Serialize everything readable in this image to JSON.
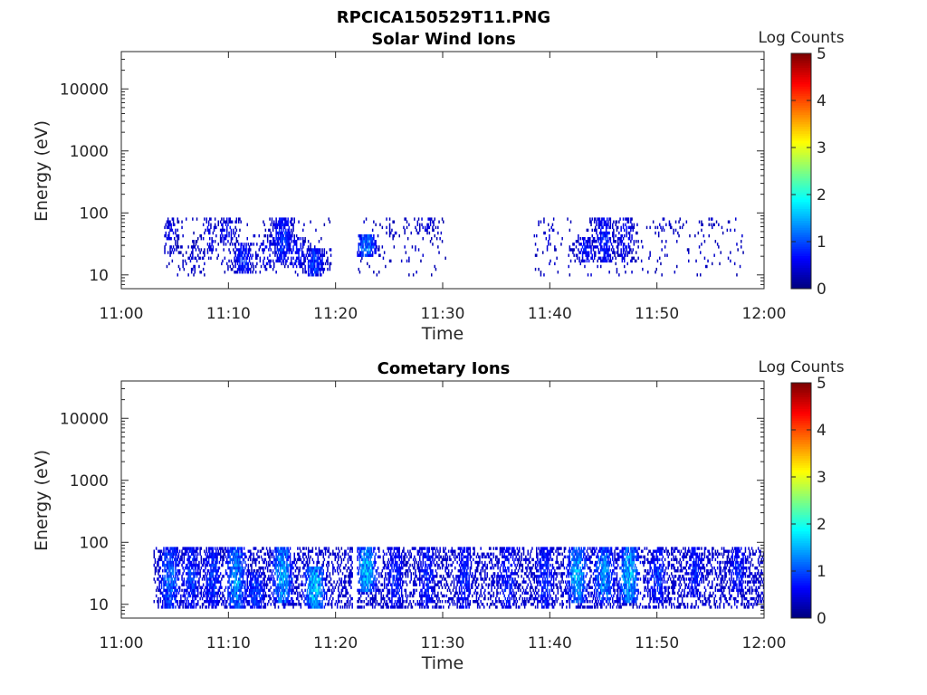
{
  "figure_title": "RPCICA150529T11.PNG",
  "chart_data": [
    {
      "type": "heatmap",
      "title": "Solar Wind Ions",
      "xlabel": "Time",
      "ylabel": "Energy (eV)",
      "x_range": [
        "11:00",
        "12:00"
      ],
      "x_ticks": [
        "11:00",
        "11:10",
        "11:20",
        "11:30",
        "11:40",
        "11:50",
        "12:00"
      ],
      "y_scale": "log",
      "y_range": [
        6,
        40000
      ],
      "y_ticks": [
        "10",
        "100",
        "1000",
        "10000"
      ],
      "colorbar": {
        "label": "Log Counts",
        "range": [
          0,
          5
        ],
        "ticks": [
          "0",
          "1",
          "2",
          "3",
          "4",
          "5"
        ],
        "colormap": "jet"
      },
      "blobs": [
        {
          "t": "11:04:30",
          "e_lo": 20,
          "e_hi": 80,
          "level": 0.6,
          "density": 0.45
        },
        {
          "t": "11:06:40",
          "e_lo": 9,
          "e_hi": 35,
          "level": 0.5,
          "density": 0.25
        },
        {
          "t": "11:08:10",
          "e_lo": 20,
          "e_hi": 80,
          "level": 0.6,
          "density": 0.3
        },
        {
          "t": "11:09:50",
          "e_lo": 30,
          "e_hi": 80,
          "level": 0.7,
          "density": 0.45
        },
        {
          "t": "11:11:20",
          "e_lo": 10,
          "e_hi": 30,
          "level": 0.9,
          "density": 0.8
        },
        {
          "t": "11:13:30",
          "e_lo": 11,
          "e_hi": 35,
          "level": 0.7,
          "density": 0.4
        },
        {
          "t": "11:15:00",
          "e_lo": 15,
          "e_hi": 80,
          "level": 1.0,
          "density": 0.85
        },
        {
          "t": "11:16:20",
          "e_lo": 12,
          "e_hi": 40,
          "level": 0.8,
          "density": 0.55
        },
        {
          "t": "11:18:00",
          "e_lo": 9,
          "e_hi": 25,
          "level": 1.1,
          "density": 0.9
        },
        {
          "t": "11:22:50",
          "e_lo": 18,
          "e_hi": 45,
          "level": 1.4,
          "density": 0.9
        },
        {
          "t": "11:25:30",
          "e_lo": 40,
          "e_hi": 80,
          "level": 0.5,
          "density": 0.25
        },
        {
          "t": "11:28:30",
          "e_lo": 45,
          "e_hi": 80,
          "level": 0.6,
          "density": 0.35
        },
        {
          "t": "11:39:50",
          "e_lo": 20,
          "e_hi": 80,
          "level": 0.5,
          "density": 0.2
        },
        {
          "t": "11:43:20",
          "e_lo": 15,
          "e_hi": 40,
          "level": 0.8,
          "density": 0.6
        },
        {
          "t": "11:45:00",
          "e_lo": 15,
          "e_hi": 80,
          "level": 0.9,
          "density": 0.7
        },
        {
          "t": "11:47:00",
          "e_lo": 15,
          "e_hi": 80,
          "level": 0.7,
          "density": 0.45
        },
        {
          "t": "11:50:30",
          "e_lo": 50,
          "e_hi": 80,
          "level": 0.5,
          "density": 0.25
        },
        {
          "t": "11:56:00",
          "e_lo": 55,
          "e_hi": 80,
          "level": 0.4,
          "density": 0.15
        }
      ],
      "active_windows": [
        [
          "11:04:00",
          "11:19:30"
        ],
        [
          "11:22:00",
          "11:30:30"
        ],
        [
          "11:38:30",
          "11:58:00"
        ]
      ],
      "background": {
        "e_lo": 9,
        "e_hi": 80,
        "level": 0.4,
        "density": 0.04
      }
    },
    {
      "type": "heatmap",
      "title": "Cometary Ions",
      "xlabel": "Time",
      "ylabel": "Energy (eV)",
      "x_range": [
        "11:00",
        "12:00"
      ],
      "x_ticks": [
        "11:00",
        "11:10",
        "11:20",
        "11:30",
        "11:40",
        "11:50",
        "12:00"
      ],
      "y_scale": "log",
      "y_range": [
        6,
        40000
      ],
      "y_ticks": [
        "10",
        "100",
        "1000",
        "10000"
      ],
      "colorbar": {
        "label": "Log Counts",
        "range": [
          0,
          5
        ],
        "ticks": [
          "0",
          "1",
          "2",
          "3",
          "4",
          "5"
        ],
        "colormap": "jet"
      },
      "blobs": [
        {
          "t": "11:04:30",
          "e_lo": 8,
          "e_hi": 80,
          "level": 1.3,
          "density": 0.85
        },
        {
          "t": "11:06:30",
          "e_lo": 8,
          "e_hi": 80,
          "level": 1.0,
          "density": 0.75
        },
        {
          "t": "11:08:30",
          "e_lo": 8,
          "e_hi": 80,
          "level": 1.0,
          "density": 0.75
        },
        {
          "t": "11:10:40",
          "e_lo": 8,
          "e_hi": 80,
          "level": 1.6,
          "density": 0.9
        },
        {
          "t": "11:12:30",
          "e_lo": 8,
          "e_hi": 30,
          "level": 1.1,
          "density": 0.85
        },
        {
          "t": "11:15:00",
          "e_lo": 10,
          "e_hi": 80,
          "level": 1.7,
          "density": 0.9
        },
        {
          "t": "11:18:00",
          "e_lo": 8,
          "e_hi": 40,
          "level": 1.9,
          "density": 0.95
        },
        {
          "t": "11:20:00",
          "e_lo": 10,
          "e_hi": 18,
          "level": 0.6,
          "density": 0.4
        },
        {
          "t": "11:22:50",
          "e_lo": 15,
          "e_hi": 80,
          "level": 1.8,
          "density": 0.9
        },
        {
          "t": "11:25:30",
          "e_lo": 8,
          "e_hi": 80,
          "level": 0.9,
          "density": 0.7
        },
        {
          "t": "11:28:30",
          "e_lo": 8,
          "e_hi": 80,
          "level": 0.9,
          "density": 0.7
        },
        {
          "t": "11:32:00",
          "e_lo": 8,
          "e_hi": 80,
          "level": 0.9,
          "density": 0.65
        },
        {
          "t": "11:36:00",
          "e_lo": 8,
          "e_hi": 80,
          "level": 0.9,
          "density": 0.6
        },
        {
          "t": "11:39:30",
          "e_lo": 8,
          "e_hi": 80,
          "level": 1.0,
          "density": 0.7
        },
        {
          "t": "11:42:30",
          "e_lo": 10,
          "e_hi": 80,
          "level": 1.7,
          "density": 0.85
        },
        {
          "t": "11:45:00",
          "e_lo": 10,
          "e_hi": 80,
          "level": 1.5,
          "density": 0.85
        },
        {
          "t": "11:47:20",
          "e_lo": 10,
          "e_hi": 80,
          "level": 1.8,
          "density": 0.9
        },
        {
          "t": "11:50:00",
          "e_lo": 10,
          "e_hi": 80,
          "level": 1.0,
          "density": 0.7
        },
        {
          "t": "11:53:30",
          "e_lo": 12,
          "e_hi": 80,
          "level": 0.9,
          "density": 0.7
        },
        {
          "t": "11:57:30",
          "e_lo": 15,
          "e_hi": 80,
          "level": 0.9,
          "density": 0.7
        }
      ],
      "active_windows": [
        [
          "11:03:00",
          "11:19:30"
        ],
        [
          "11:19:30",
          "11:21:30"
        ],
        [
          "11:22:00",
          "12:00:00"
        ]
      ],
      "background": {
        "e_lo": 8,
        "e_hi": 80,
        "level": 0.5,
        "density": 0.35
      }
    }
  ]
}
